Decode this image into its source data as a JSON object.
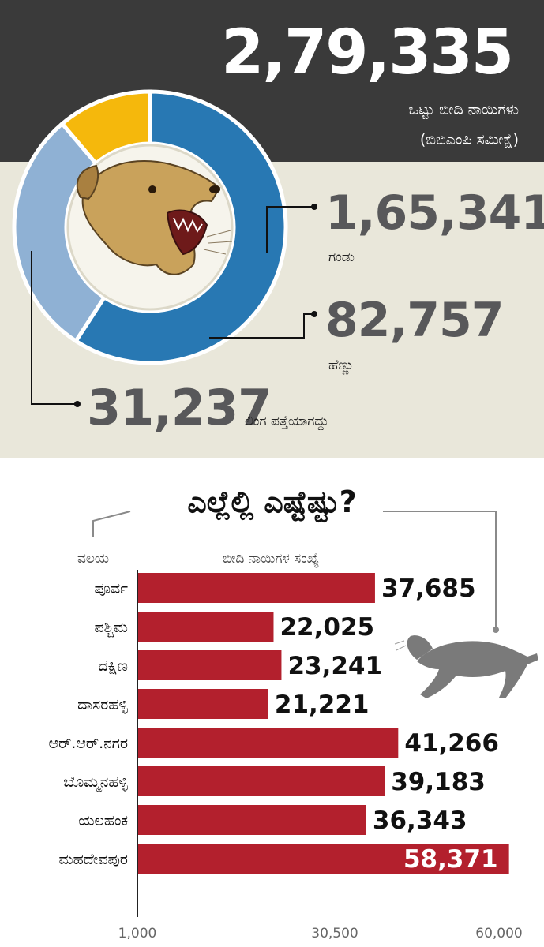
{
  "header": {
    "total": "2,79,335",
    "total_label": "ಒಟ್ಟು ಬೀದಿ ನಾಯಿಗಳು",
    "source_label": "(ಬಿಬಿಎಂಪಿ ಸಮೀಕ್ಷೆ)"
  },
  "donut": {
    "type": "pie",
    "slices": [
      {
        "label": "ಗಂಡು",
        "value_text": "1,65,341",
        "value": 165341,
        "color": "#2878b3"
      },
      {
        "label": "ಹೆಣ್ಣು",
        "value_text": "82,757",
        "value": 82757,
        "color": "#8fb1d4"
      },
      {
        "label": "ಲಿಂಗ ಪತ್ತೆಯಾಗದ್ದು",
        "value_text": "31,237",
        "value": 31237,
        "color": "#f5b80c"
      }
    ]
  },
  "bars_section": {
    "title": "ಎಲ್ಲೆಲ್ಲಿ ಎಷ್ಟೆಷ್ಟು?",
    "category_header": "ವಲಯ",
    "value_header": "ಬೀದಿ ನಾಯಿಗಳ ಸಂಖ್ಯೆ"
  },
  "chart_data": {
    "type": "bar",
    "orientation": "horizontal",
    "categories": [
      "ಪೂರ್ವ",
      "ಪಶ್ಚಿಮ",
      "ದಕ್ಷಿಣ",
      "ದಾಸರಹಳ್ಳಿ",
      "ಆರ್.ಆರ್.ನಗರ",
      "ಬೊಮ್ಮನಹಳ್ಳಿ",
      "ಯಲಹಂಕ",
      "ಮಹದೇವಪುರ"
    ],
    "values": [
      37685,
      22025,
      23241,
      21221,
      41266,
      39183,
      36343,
      58371
    ],
    "value_labels": [
      "37,685",
      "22,025",
      "23,241",
      "21,221",
      "41,266",
      "39,183",
      "36,343",
      "58,371"
    ],
    "xlim": [
      1000,
      60000
    ],
    "x_ticks": [
      "1,000",
      "30,500",
      "60,000"
    ],
    "bar_color": "#b3202d"
  }
}
